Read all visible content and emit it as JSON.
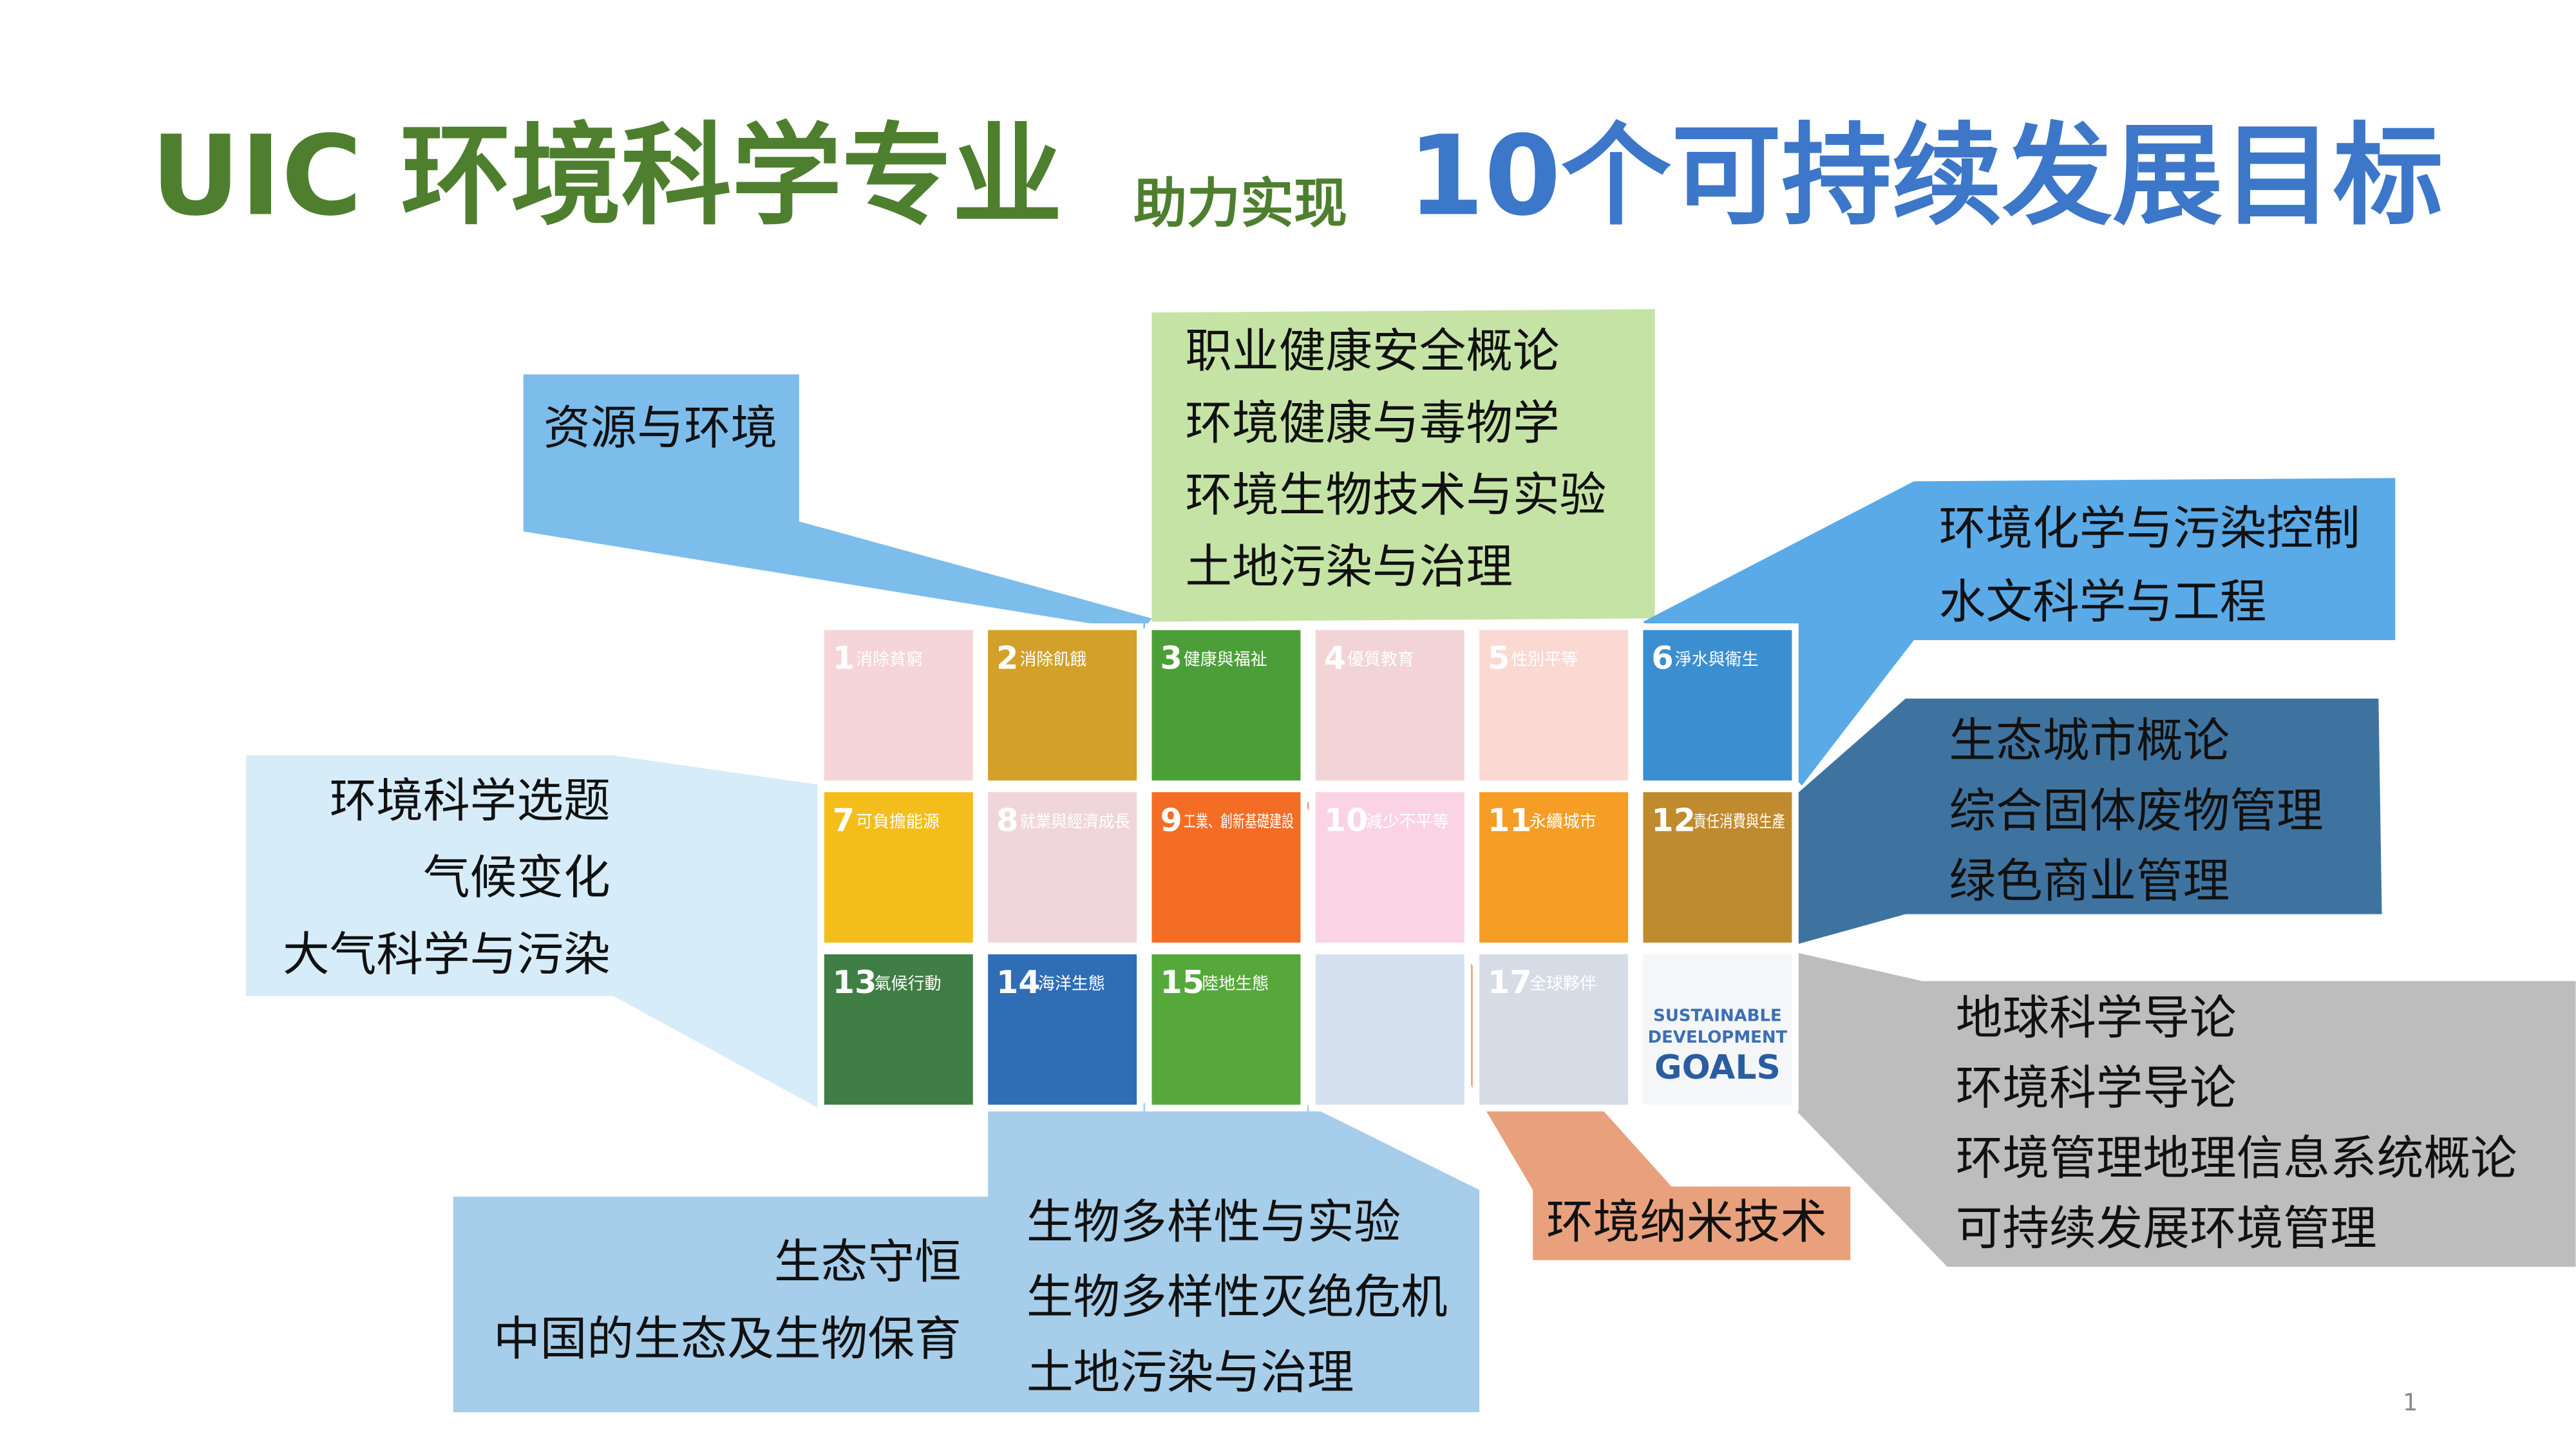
{
  "title": {
    "part1": "UIC 环境科学专业",
    "part2": "助力实现",
    "part3": "10个可持续发展目标"
  },
  "tiles": [
    {
      "number": "1",
      "label": "消除貧窮",
      "color": "#f5d5d7"
    },
    {
      "number": "2",
      "label": "消除飢餓",
      "color": "#d3a029"
    },
    {
      "number": "3",
      "label": "健康與福祉",
      "color": "#4c9f38"
    },
    {
      "number": "4",
      "label": "優質教育",
      "color": "#f3d4d6"
    },
    {
      "number": "5",
      "label": "性別平等",
      "color": "#fbd9d3"
    },
    {
      "number": "6",
      "label": "淨水與衛生",
      "color": "#3b8fd0"
    },
    {
      "number": "7",
      "label": "可負擔能源",
      "color": "#f3be1b"
    },
    {
      "number": "8",
      "label": "就業與經濟成長",
      "color": "#f0d6da"
    },
    {
      "number": "9",
      "label": "工業、創新基礎建設",
      "color": "#f36d25"
    },
    {
      "number": "10",
      "label": "減少不平等",
      "color": "#fad3e4"
    },
    {
      "number": "11",
      "label": "永續城市",
      "color": "#f59d24"
    },
    {
      "number": "12",
      "label": "責任消費與生產",
      "color": "#bf8b2e"
    },
    {
      "number": "13",
      "label": "氣候行動",
      "color": "#3f7e44"
    },
    {
      "number": "14",
      "label": "海洋生態",
      "color": "#2f6db5"
    },
    {
      "number": "15",
      "label": "陸地生態",
      "color": "#56a83b"
    },
    {
      "color": "#d5e1ef"
    },
    {
      "number": "17",
      "label": "全球夥伴",
      "color": "#d6dce6"
    },
    {
      "lines": [
        "SUSTAINABLE",
        "DEVELOPMENT",
        "GOALS"
      ],
      "color": "#f4f6f8"
    }
  ],
  "callouts": [
    {
      "color": "#7dbdec",
      "columns": [
        [
          "资源与环境"
        ]
      ]
    },
    {
      "color": "#c6e3a6",
      "columns": [
        [
          "职业健康安全概论",
          "环境健康与毒物学",
          "环境生物技术与实验",
          "土地污染与治理"
        ]
      ]
    },
    {
      "color": "#5aaae8",
      "columns": [
        [
          "环境化学与污染控制",
          "水文科学与工程"
        ]
      ]
    },
    {
      "color": "#3f739f",
      "columns": [
        [
          "生态城市概论",
          "综合固体废物管理",
          "绿色商业管理"
        ]
      ]
    },
    {
      "color": "#bdbdbd",
      "columns": [
        [
          "地球科学导论",
          "环境科学导论",
          "环境管理地理信息系统概论",
          "可持续发展环境管理"
        ]
      ]
    },
    {
      "color": "#a6cde9",
      "columns": [
        [
          "生态守恒",
          "中国的生态及生物保育"
        ],
        [
          "生物多样性与实验",
          "生物多样性灭绝危机",
          "土地污染与治理"
        ]
      ]
    },
    {
      "color": "#e8a17c",
      "columns": [
        [
          "环境纳米技术"
        ]
      ]
    },
    {
      "color": "#d6ecf9",
      "columns": [
        [
          "环境科学选题",
          "气候变化",
          "大气科学与污染"
        ]
      ]
    }
  ],
  "page_number": "1"
}
